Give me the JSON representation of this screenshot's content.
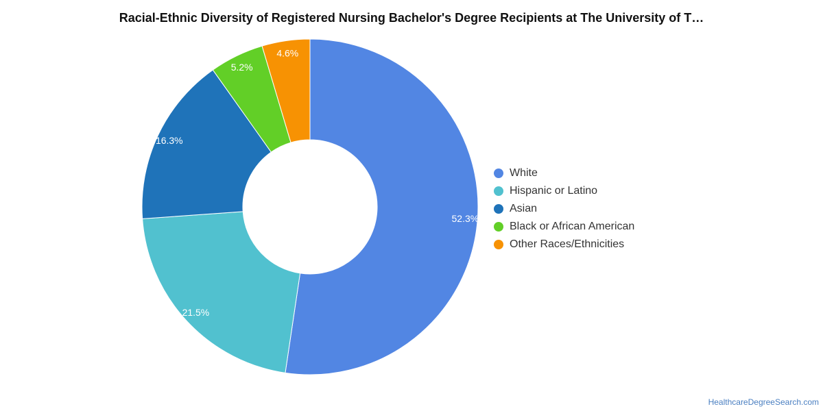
{
  "chart_data": {
    "type": "pie",
    "title": "Racial-Ethnic Diversity of Registered Nursing Bachelor's Degree Recipients at The University of T…",
    "donut": true,
    "legend_position": "right",
    "slices": [
      {
        "label": "White",
        "value": 52.3,
        "display": "52.3%",
        "color": "#5286e3"
      },
      {
        "label": "Hispanic or Latino",
        "value": 21.5,
        "display": "21.5%",
        "color": "#51c1cf"
      },
      {
        "label": "Asian",
        "value": 16.3,
        "display": "16.3%",
        "color": "#1f73b9"
      },
      {
        "label": "Black or African American",
        "value": 5.2,
        "display": "5.2%",
        "color": "#62cf27"
      },
      {
        "label": "Other Races/Ethnicities",
        "value": 4.6,
        "display": "4.6%",
        "color": "#f79203"
      }
    ]
  },
  "watermark": "HealthcareDegreeSearch.com"
}
